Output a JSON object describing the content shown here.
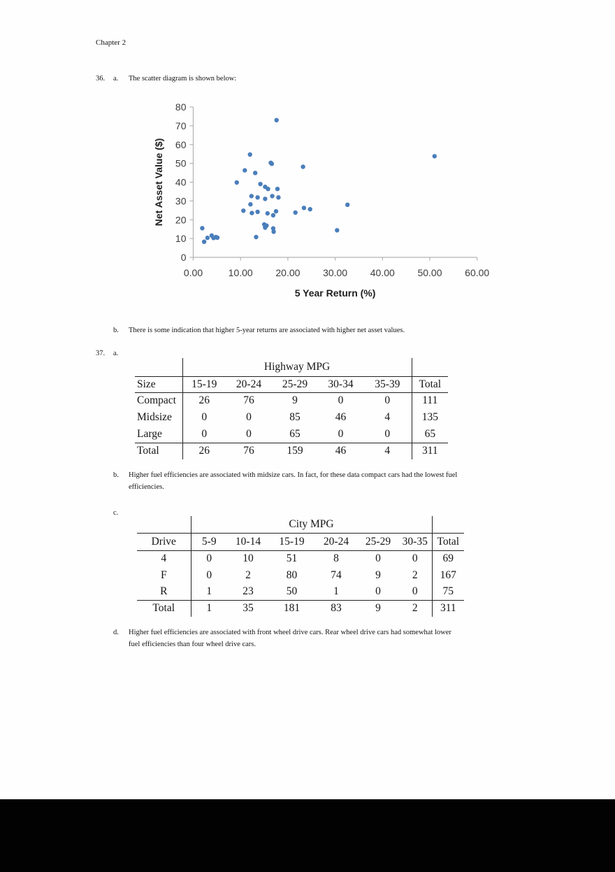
{
  "page": {
    "chapter_heading": "Chapter 2"
  },
  "item36": {
    "number": "36.",
    "a_label": "a.",
    "a_text": "The scatter diagram is shown below:",
    "b_label": "b.",
    "b_text": "There is some indication that higher 5-year returns are associated with higher net asset values."
  },
  "chart_data": {
    "type": "scatter",
    "title": "",
    "xlabel": "5 Year Return (%)",
    "ylabel": "Net Asset Value ($)",
    "xlim": [
      0,
      60
    ],
    "ylim": [
      0,
      80
    ],
    "xtick_labels": [
      "0.00",
      "10.00",
      "20.00",
      "30.00",
      "40.00",
      "50.00",
      "60.00"
    ],
    "ytick_values": [
      0,
      10,
      20,
      30,
      40,
      50,
      60,
      70,
      80
    ],
    "grid": false,
    "legend": "none",
    "point_color": "#4a7ebb",
    "axis_color": "#b3b3b3",
    "tick_label_color": "#3d3d3d",
    "axis_title_color": "#1f1f1f",
    "points": [
      [
        1.9,
        15.5
      ],
      [
        2.3,
        8.3
      ],
      [
        3.0,
        10.4
      ],
      [
        3.9,
        11.6
      ],
      [
        4.3,
        10.3
      ],
      [
        4.8,
        10.8
      ],
      [
        5.1,
        10.5
      ],
      [
        9.2,
        39.8
      ],
      [
        10.6,
        24.8
      ],
      [
        10.9,
        46.3
      ],
      [
        12.0,
        54.7
      ],
      [
        12.1,
        28.2
      ],
      [
        12.4,
        23.6
      ],
      [
        12.3,
        32.6
      ],
      [
        13.1,
        44.9
      ],
      [
        13.3,
        10.8
      ],
      [
        13.6,
        24.2
      ],
      [
        13.6,
        31.9
      ],
      [
        14.2,
        39.0
      ],
      [
        15.0,
        17.5
      ],
      [
        15.2,
        15.8
      ],
      [
        15.5,
        16.9
      ],
      [
        15.2,
        37.5
      ],
      [
        15.8,
        36.4
      ],
      [
        15.2,
        31.1
      ],
      [
        15.7,
        23.4
      ],
      [
        16.4,
        50.3
      ],
      [
        16.6,
        49.8
      ],
      [
        16.7,
        32.6
      ],
      [
        16.9,
        22.4
      ],
      [
        16.9,
        15.4
      ],
      [
        17.0,
        13.6
      ],
      [
        17.5,
        24.5
      ],
      [
        17.6,
        73.0
      ],
      [
        17.8,
        36.4
      ],
      [
        18.0,
        31.9
      ],
      [
        21.6,
        23.8
      ],
      [
        23.2,
        48.2
      ],
      [
        23.4,
        26.3
      ],
      [
        24.7,
        25.6
      ],
      [
        30.4,
        14.4
      ],
      [
        32.6,
        28.0
      ],
      [
        51.0,
        53.8
      ]
    ]
  },
  "item37": {
    "number": "37.",
    "a_label": "a.",
    "b_label": "b.",
    "b_text": "Higher fuel efficiencies are associated with midsize cars. In fact, for these data compact cars had the lowest fuel efficiencies.",
    "c_label": "c.",
    "d_label": "d.",
    "d_text": "Higher fuel efficiencies are associated with front wheel drive cars. Rear wheel drive cars had somewhat lower fuel efficiencies than four wheel drive cars."
  },
  "highway_table": {
    "title": "Highway MPG",
    "row_header": "Size",
    "col_headers": [
      "15-19",
      "20-24",
      "25-29",
      "30-34",
      "35-39"
    ],
    "total_header": "Total",
    "rows": [
      {
        "label": "Compact",
        "values": [
          "26",
          "76",
          "9",
          "0",
          "0"
        ],
        "total": "111"
      },
      {
        "label": "Midsize",
        "values": [
          "0",
          "0",
          "85",
          "46",
          "4"
        ],
        "total": "135"
      },
      {
        "label": "Large",
        "values": [
          "0",
          "0",
          "65",
          "0",
          "0"
        ],
        "total": "65"
      }
    ],
    "total_row": {
      "label": "Total",
      "values": [
        "26",
        "76",
        "159",
        "46",
        "4"
      ],
      "total": "311"
    }
  },
  "city_table": {
    "title": "City MPG",
    "row_header": "Drive",
    "col_headers": [
      "5-9",
      "10-14",
      "15-19",
      "20-24",
      "25-29",
      "30-35"
    ],
    "total_header": "Total",
    "rows": [
      {
        "label": "4",
        "values": [
          "0",
          "10",
          "51",
          "8",
          "0",
          "0"
        ],
        "total": "69"
      },
      {
        "label": "F",
        "values": [
          "0",
          "2",
          "80",
          "74",
          "9",
          "2"
        ],
        "total": "167"
      },
      {
        "label": "R",
        "values": [
          "1",
          "23",
          "50",
          "1",
          "0",
          "0"
        ],
        "total": "75"
      }
    ],
    "total_row": {
      "label": "Total",
      "values": [
        "1",
        "35",
        "181",
        "83",
        "9",
        "2"
      ],
      "total": "311"
    }
  }
}
